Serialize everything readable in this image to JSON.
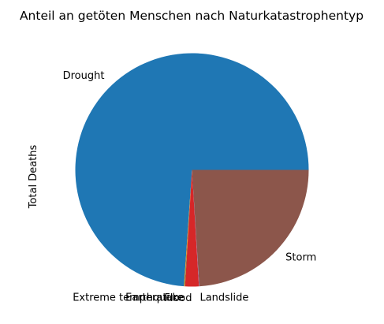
{
  "chart_data": {
    "type": "pie",
    "title": "Anteil an getöten Menschen nach Naturkatastrophentyp",
    "ylabel": "Total Deaths",
    "slices": [
      {
        "label": "Drought",
        "value": 73.9,
        "color": "#1f77b4"
      },
      {
        "label": "Extreme temperature",
        "value": 0.1,
        "color": "#ff7f0e"
      },
      {
        "label": "Earthquake",
        "value": 0.05,
        "color": "#2ca02c"
      },
      {
        "label": "Flood",
        "value": 1.9,
        "color": "#d62728"
      },
      {
        "label": "Landslide",
        "value": 0.05,
        "color": "#9467bd"
      },
      {
        "label": "Storm",
        "value": 24.0,
        "color": "#8c564b"
      }
    ]
  }
}
